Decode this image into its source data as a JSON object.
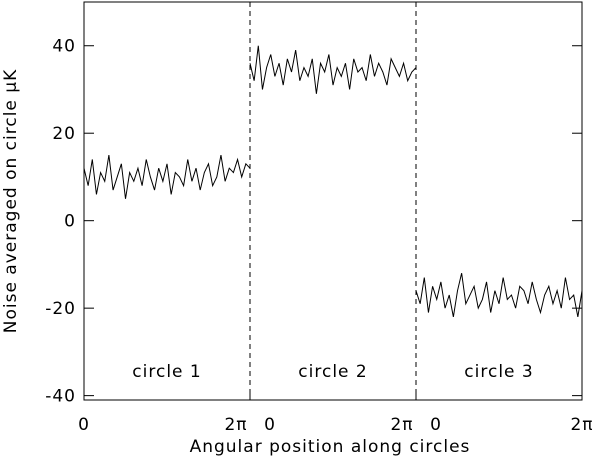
{
  "chart_data": {
    "type": "line",
    "xlabel": "Angular position along circles",
    "ylabel": "Noise averaged on circle μK",
    "x": [
      0,
      0.157,
      0.314,
      0.471,
      0.628,
      0.785,
      0.942,
      1.1,
      1.257,
      1.414,
      1.571,
      1.728,
      1.885,
      2.042,
      2.199,
      2.356,
      2.513,
      2.67,
      2.827,
      2.985,
      3.142,
      3.299,
      3.456,
      3.613,
      3.77,
      3.927,
      4.084,
      4.241,
      4.398,
      4.555,
      4.712,
      4.869,
      5.027,
      5.184,
      5.341,
      5.498,
      5.655,
      5.812,
      5.969,
      6.126,
      6.283
    ],
    "xlim": [
      0,
      6.283
    ],
    "xticks": [
      {
        "value": 0,
        "label": "0"
      },
      {
        "value": 6.283,
        "label": "2π"
      }
    ],
    "ylim": [
      -41,
      50
    ],
    "yticks": [
      -40,
      -20,
      0,
      20,
      40
    ],
    "series": [
      {
        "name": "circle 1",
        "color": "#000000",
        "values": [
          12,
          8,
          14,
          6,
          11,
          9,
          15,
          7,
          10,
          13,
          5,
          11,
          9,
          12,
          8,
          14,
          10,
          7,
          12,
          9,
          13,
          6,
          11,
          10,
          8,
          14,
          9,
          12,
          7,
          11,
          13,
          8,
          10,
          15,
          9,
          12,
          11,
          14,
          10,
          13,
          12
        ]
      },
      {
        "name": "circle 2",
        "color": "#000000",
        "values": [
          36,
          32,
          40,
          30,
          35,
          38,
          33,
          36,
          31,
          37,
          34,
          39,
          32,
          35,
          33,
          37,
          29,
          36,
          34,
          38,
          31,
          35,
          33,
          36,
          30,
          37,
          34,
          35,
          32,
          38,
          33,
          36,
          34,
          31,
          37,
          35,
          33,
          36,
          32,
          34,
          35
        ]
      },
      {
        "name": "circle 3",
        "color": "#000000",
        "values": [
          -16,
          -19,
          -13,
          -21,
          -15,
          -18,
          -14,
          -20,
          -17,
          -22,
          -16,
          -12,
          -19,
          -17,
          -15,
          -20,
          -18,
          -14,
          -21,
          -16,
          -19,
          -13,
          -18,
          -17,
          -20,
          -15,
          -16,
          -19,
          -14,
          -18,
          -21,
          -17,
          -15,
          -19,
          -16,
          -20,
          -13,
          -18,
          -17,
          -22,
          -16
        ]
      }
    ]
  }
}
